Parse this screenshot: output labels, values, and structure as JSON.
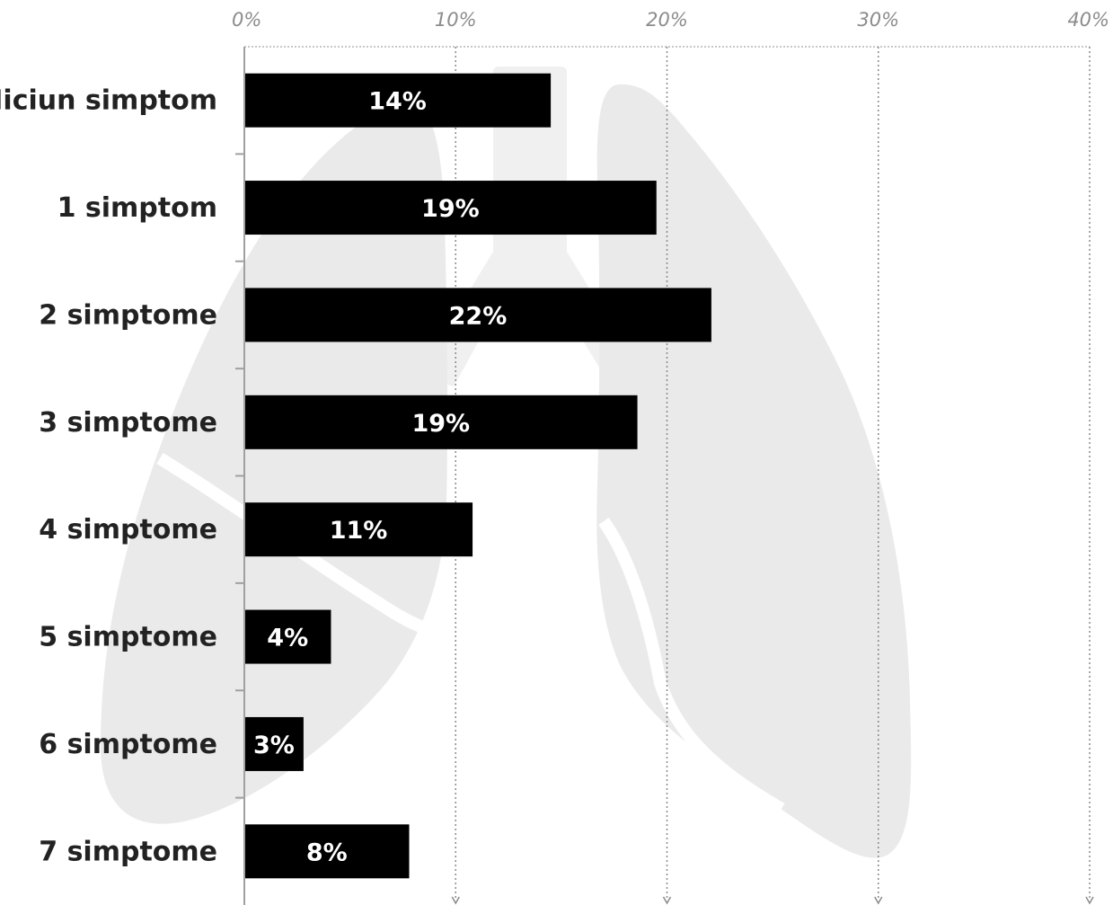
{
  "chart_data": {
    "type": "bar",
    "orientation": "horizontal",
    "categories": [
      "Niciun simptom",
      "1 simptom",
      "2 simptome",
      "3 simptome",
      "4 simptome",
      "5 simptome",
      "6 simptome",
      "7 simptome"
    ],
    "values": [
      14.5,
      19.5,
      22.1,
      18.6,
      10.8,
      4.1,
      2.8,
      7.8
    ],
    "value_labels": [
      "14%",
      "19%",
      "22%",
      "19%",
      "11%",
      "4%",
      "3%",
      "8%"
    ],
    "x_ticks": [
      0,
      10,
      20,
      30,
      40
    ],
    "x_tick_labels": [
      "0%",
      "10%",
      "20%",
      "30%",
      "40%"
    ],
    "xlim": [
      0,
      40
    ],
    "x_axis_position": "top",
    "grid": "vertical dotted",
    "bar_color": "#000000",
    "bar_label_color": "#ffffff",
    "background_illustration": "lungs-icon"
  }
}
